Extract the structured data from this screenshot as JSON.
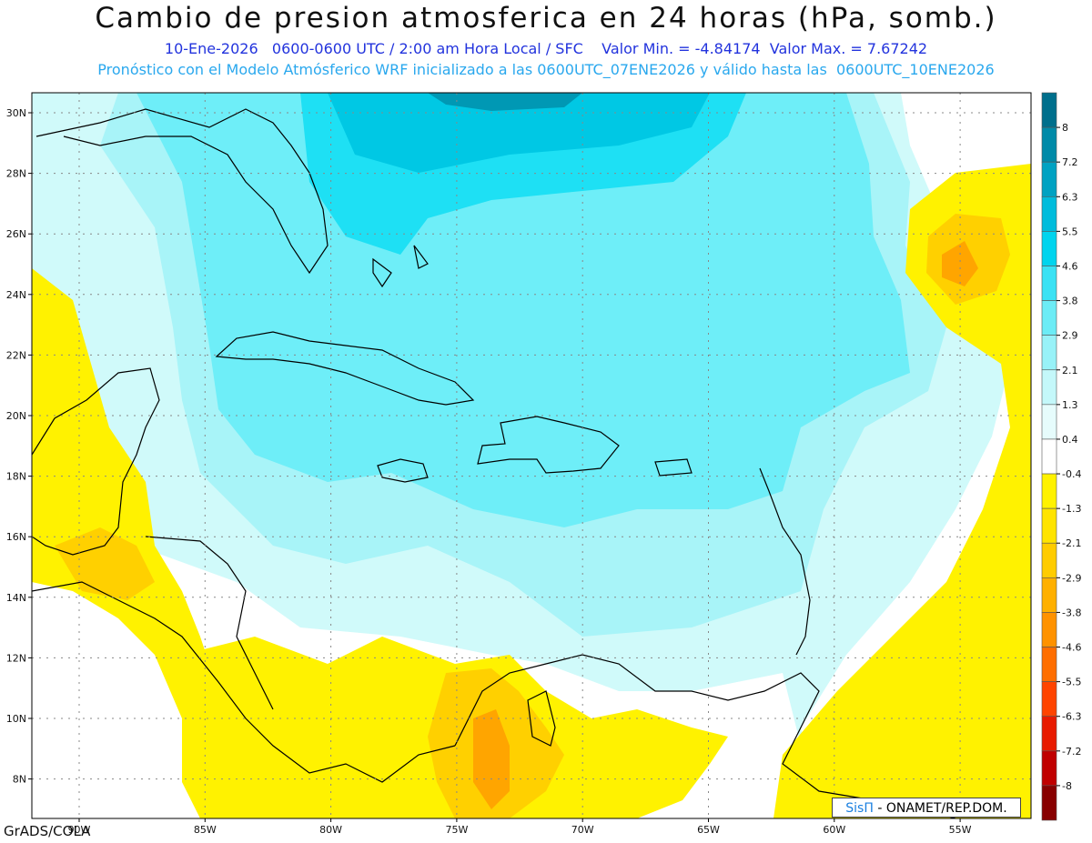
{
  "header": {
    "title": "Cambio de presion atmosferica en 24 horas (hPa, somb.)",
    "subtitle_date": "10-Ene-2026",
    "subtitle_time": "0600-0600 UTC / 2:00 am Hora Local / SFC",
    "min_label": "Valor Min. = -4.84174",
    "max_label": "Valor Max. = 7.67242",
    "model_line": "Pronóstico con el Modelo Atmósferico WRF inicializado a las 0600UTC_07ENE2026 y válido hasta las  0600UTC_10ENE2026"
  },
  "map": {
    "lat_labels": [
      "30N",
      "28N",
      "26N",
      "24N",
      "22N",
      "20N",
      "18N",
      "16N",
      "14N",
      "12N",
      "10N",
      "8N"
    ],
    "lon_labels": [
      "90W",
      "85W",
      "80W",
      "75W",
      "70W",
      "65W",
      "60W",
      "55W"
    ],
    "colors": {
      "neutral": "#ffffff",
      "pos1": "#d0fafa",
      "pos2": "#a8f4f8",
      "pos3": "#6eeef8",
      "pos4": "#1ee0f4",
      "pos5": "#00c8e4",
      "pos6": "#0098b4",
      "neg1": "#fff200",
      "neg2": "#ffd000",
      "neg3": "#ffa500",
      "neg4": "#ff7a00"
    }
  },
  "colorbar": {
    "labels": [
      "8",
      "7.2",
      "6.3",
      "5.5",
      "4.6",
      "3.8",
      "2.9",
      "2.1",
      "1.3",
      "0.4",
      "-0.4",
      "-1.3",
      "-2.1",
      "-2.9",
      "-3.8",
      "-4.6",
      "-5.5",
      "-6.3",
      "-7.2",
      "-8"
    ],
    "colors": [
      "#006f8c",
      "#008aa8",
      "#00a2c2",
      "#00bcdc",
      "#00d4ee",
      "#3ae2f4",
      "#6cecf6",
      "#98f2f8",
      "#c4f8fa",
      "#e6fcfc",
      "#ffffff",
      "#fff200",
      "#ffe400",
      "#ffcc00",
      "#ffb000",
      "#ff9200",
      "#ff6e00",
      "#ff4400",
      "#e81a00",
      "#c00000",
      "#880000"
    ]
  },
  "credit": {
    "brand": "SisΠ",
    "text": " - ONAMET/REP.DOM."
  },
  "footer": "GrADS/COLA"
}
